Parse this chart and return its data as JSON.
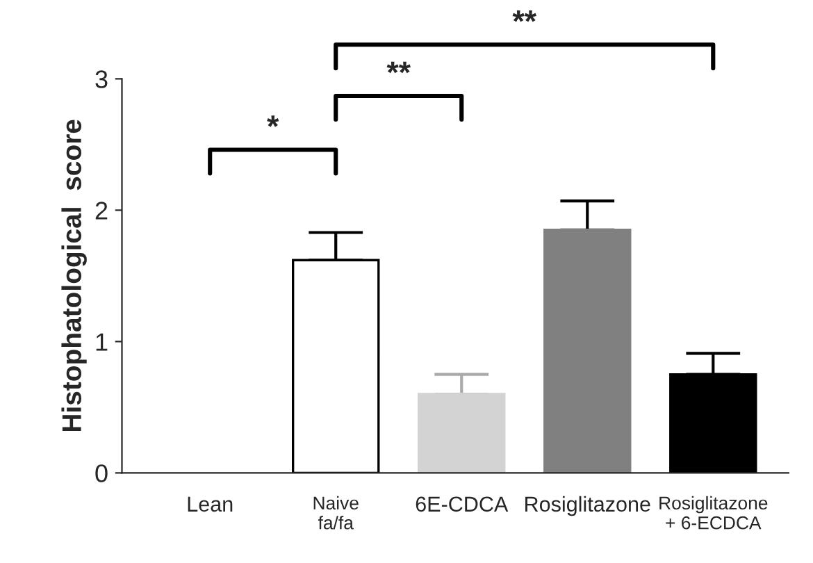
{
  "chart_data": {
    "type": "bar",
    "ylabel": "Histophatological  score",
    "categories": [
      "Lean",
      "Naive\nfa/fa",
      "6E-CDCA",
      "Rosiglitazone",
      "Rosiglitazone\n+ 6-ECDCA"
    ],
    "values": [
      null,
      1.62,
      0.6,
      1.85,
      0.75
    ],
    "errors": [
      null,
      0.21,
      0.15,
      0.22,
      0.16
    ],
    "colors": [
      null,
      "#ffffff",
      "#d3d3d3",
      "#808080",
      "#000000"
    ],
    "ylim": [
      0,
      3
    ],
    "yticks": [
      0,
      1,
      2,
      3
    ],
    "grid": false,
    "annotations": [
      "*",
      "**",
      "**"
    ]
  }
}
